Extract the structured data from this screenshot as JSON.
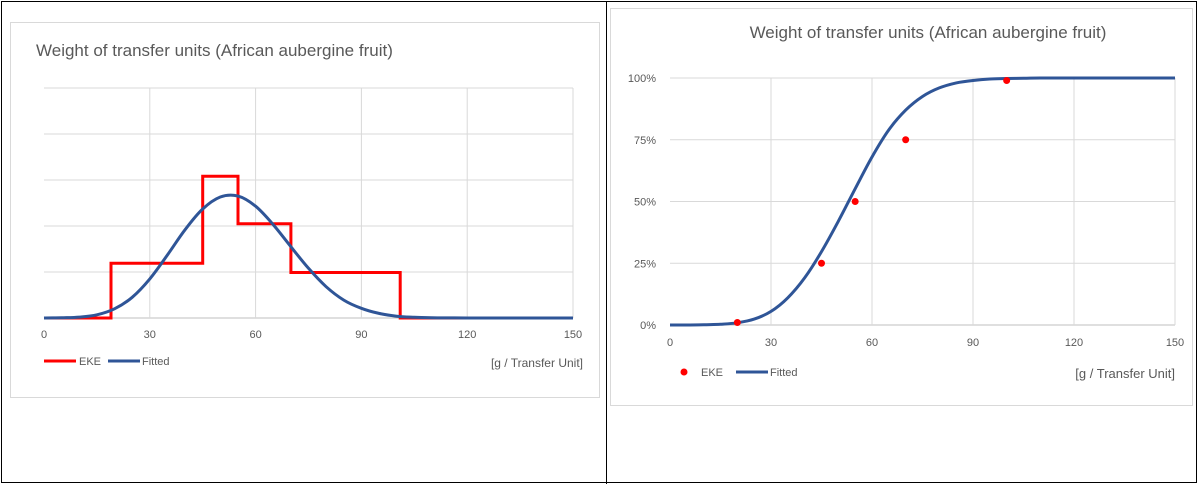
{
  "chart_data": [
    {
      "type": "line",
      "title": "Weight of transfer units (African aubergine fruit)",
      "xlabel": "[g / Transfer Unit]",
      "ylabel": "",
      "xlim": [
        0,
        150
      ],
      "ylim": [
        0,
        0.05
      ],
      "xticks": [
        0,
        30,
        60,
        90,
        120,
        150
      ],
      "xtick_labels": [
        "0",
        "30",
        "60",
        "90",
        "120",
        "150"
      ],
      "yticks": [
        0,
        0.01,
        0.02,
        0.03,
        0.04,
        0.05
      ],
      "ytick_labels": [],
      "grid": true,
      "legend_position": "bottom-left",
      "series": [
        {
          "name": "EKE",
          "color": "#ff0000",
          "style": "step",
          "x": [
            0,
            19,
            19,
            45,
            45,
            55,
            55,
            70,
            70,
            101,
            101,
            150
          ],
          "y": [
            0,
            0,
            0.0119,
            0.0119,
            0.0308,
            0.0308,
            0.0205,
            0.0205,
            0.0099,
            0.0099,
            0,
            0
          ]
        },
        {
          "name": "Fitted",
          "color": "#2f5597",
          "style": "line",
          "x": [
            0,
            5,
            10,
            15,
            20,
            25,
            30,
            35,
            40,
            45,
            50,
            55,
            60,
            65,
            70,
            75,
            80,
            85,
            90,
            95,
            100,
            105,
            110,
            115,
            120,
            130,
            150
          ],
          "y": [
            1e-05,
            5e-05,
            0.0002,
            0.0007,
            0.002,
            0.0045,
            0.0085,
            0.0137,
            0.0192,
            0.0237,
            0.0263,
            0.0265,
            0.0243,
            0.0203,
            0.0155,
            0.0108,
            0.0068,
            0.0039,
            0.0021,
            0.001,
            0.0004,
            0.00016,
            6e-05,
            2e-05,
            1e-05,
            0,
            0
          ]
        }
      ]
    },
    {
      "type": "line",
      "title": "Weight of transfer units (African aubergine fruit)",
      "xlabel": "[g / Transfer Unit]",
      "ylabel": "",
      "xlim": [
        0,
        150
      ],
      "ylim": [
        0,
        1
      ],
      "xticks": [
        0,
        30,
        60,
        90,
        120,
        150
      ],
      "xtick_labels": [
        "0",
        "30",
        "60",
        "90",
        "120",
        "150"
      ],
      "yticks": [
        0,
        0.25,
        0.5,
        0.75,
        1
      ],
      "ytick_labels": [
        "0%",
        "25%",
        "50%",
        "75%",
        "100%"
      ],
      "grid": true,
      "legend_position": "bottom-left",
      "series": [
        {
          "name": "EKE",
          "color": "#ff0000",
          "style": "scatter",
          "x": [
            20,
            45,
            55,
            70,
            100
          ],
          "y": [
            0.01,
            0.25,
            0.5,
            0.75,
            0.99
          ]
        },
        {
          "name": "Fitted",
          "color": "#2f5597",
          "style": "line",
          "x": [
            0,
            5,
            10,
            15,
            20,
            25,
            30,
            35,
            40,
            45,
            50,
            55,
            60,
            65,
            70,
            75,
            80,
            85,
            90,
            95,
            100,
            105,
            110,
            120,
            130,
            150
          ],
          "y": [
            0,
            0,
            0.001,
            0.003,
            0.009,
            0.024,
            0.055,
            0.11,
            0.191,
            0.297,
            0.42,
            0.552,
            0.68,
            0.79,
            0.87,
            0.925,
            0.96,
            0.98,
            0.99,
            0.996,
            0.998,
            0.999,
            1,
            1,
            1,
            1
          ]
        }
      ]
    }
  ]
}
